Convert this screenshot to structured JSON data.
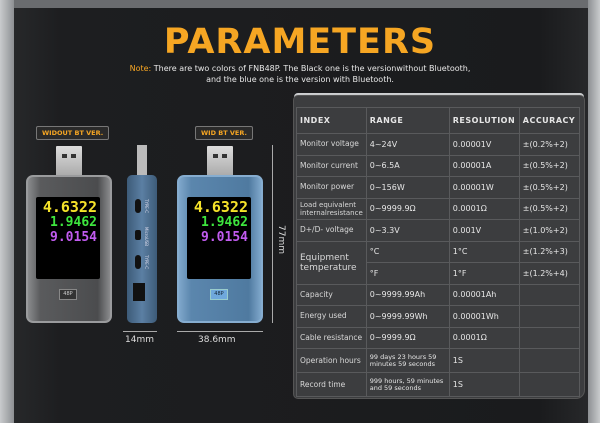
{
  "title": "PARAMETERS",
  "note": {
    "label": "Note:",
    "text": "There are two colors of FNB48P. The Black one is the versionwithout Bluetooth,",
    "text2": "and the blue one is the version with Bluetooth."
  },
  "devices": {
    "black_label": "WIDOUT BT VER.",
    "blue_label": "WID BT VER.",
    "readings": {
      "voltage": "4.6322",
      "current": "1.9462",
      "power": "9.0154"
    },
    "model_badge": "48P",
    "ports": [
      "TYPE-C",
      "MicroUSB",
      "TYPE-C"
    ],
    "dims": {
      "height": "77mm",
      "thickness": "14mm",
      "width": "38.6mm"
    }
  },
  "table": {
    "headers": [
      "INDEX",
      "RANGE",
      "RESOLUTION",
      "ACCURACY"
    ],
    "rows": [
      [
        "Monitor voltage",
        "4~24V",
        "0.00001V",
        "±(0.2%+2)"
      ],
      [
        "Monitor current",
        "0~6.5A",
        "0.00001A",
        "±(0.5%+2)"
      ],
      [
        "Monitor power",
        "0~156W",
        "0.00001W",
        "±(0.5%+2)"
      ],
      [
        "Load equivalent internalresistance",
        "0~9999.9Ω",
        "0.0001Ω",
        "±(0.5%+2)"
      ],
      [
        "D+/D- voltage",
        "0~3.3V",
        "0.001V",
        "±(1.0%+2)"
      ],
      [
        "Equipment temperature",
        "°C",
        "1°C",
        "±(1.2%+3)"
      ],
      [
        "",
        "°F",
        "1°F",
        "±(1.2%+4)"
      ],
      [
        "Capacity",
        "0~9999.99Ah",
        "0.00001Ah",
        ""
      ],
      [
        "Energy used",
        "0~9999.99Wh",
        "0.00001Wh",
        ""
      ],
      [
        "Cable resistance",
        "0~9999.9Ω",
        "0.0001Ω",
        ""
      ],
      [
        "Operation hours",
        "99 days 23 hours 59 minutes 59 seconds",
        "1S",
        ""
      ],
      [
        "Record time",
        "999 hours, 59 minutes and 59 seconds",
        "1S",
        ""
      ]
    ]
  },
  "colors": {
    "accent": "#f6a623",
    "voltage": "#f5e22a",
    "current": "#3ee63e",
    "power": "#c25cf0",
    "blue_device": "#5b86ad",
    "black_device": "#6d6e70"
  }
}
